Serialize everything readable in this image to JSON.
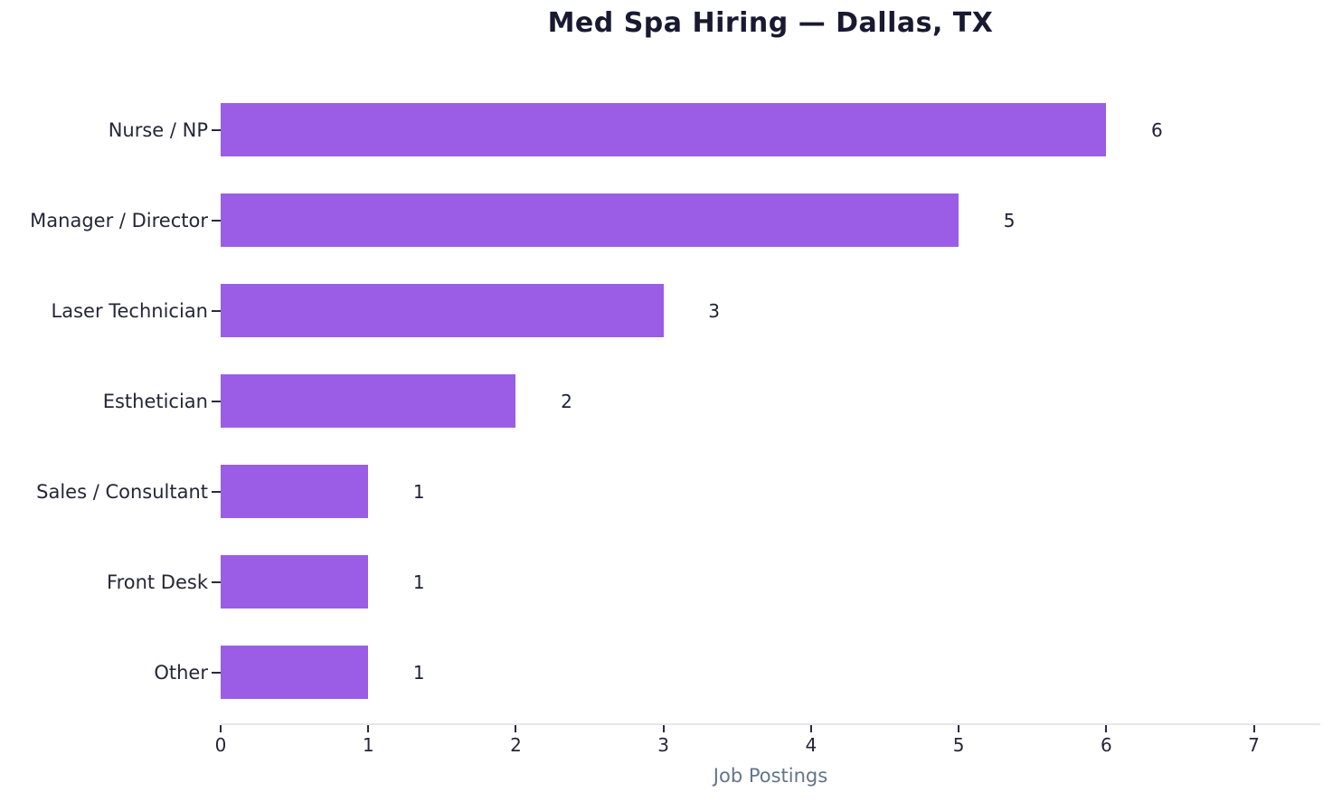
{
  "title": "Med Spa Hiring — Dallas, TX",
  "chart_data": {
    "type": "bar",
    "orientation": "horizontal",
    "title": "Med Spa Hiring — Dallas, TX",
    "xlabel": "Job Postings",
    "ylabel": "",
    "categories": [
      "Nurse / NP",
      "Manager / Director",
      "Laser Technician",
      "Esthetician",
      "Sales / Consultant",
      "Front Desk",
      "Other"
    ],
    "values": [
      6,
      5,
      3,
      2,
      1,
      1,
      1
    ],
    "value_labels": [
      "6",
      "5",
      "3",
      "2",
      "1",
      "1",
      "1"
    ],
    "xticks": [
      0,
      1,
      2,
      3,
      4,
      5,
      6,
      7
    ],
    "xlim": [
      0,
      7.45
    ],
    "grid": false,
    "legend": null,
    "bar_color": "#9b5de5"
  },
  "colors": {
    "bar": "#9b5de5",
    "title_text": "#191931",
    "label_text": "#262637",
    "value_text": "#1e1e38",
    "axis_line": "#e6e6ec",
    "tick_mark": "#2b2b3b",
    "xlabel_text": "#64748b",
    "background": "#ffffff"
  }
}
